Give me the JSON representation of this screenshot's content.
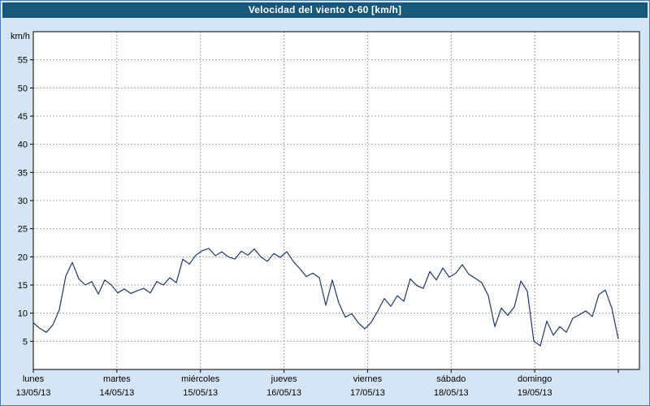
{
  "window": {
    "title": "Velocidad del viento 0-60 [km/h]"
  },
  "colors": {
    "titlebar_bg": "#175779",
    "titlebar_text": "#ffffff",
    "page_bg": "#d4e6f6",
    "page_border": "#4a7ebb",
    "plot_bg": "#ffffff",
    "plot_frame": "#000000",
    "grid": "#8c8c8c",
    "line": "#1f3864"
  },
  "chart_data": {
    "type": "line",
    "title": "Velocidad del viento 0-60 [km/h]",
    "xlabel": "",
    "ylabel": "km/h",
    "ylim": [
      0,
      60
    ],
    "yticks": [
      5,
      10,
      15,
      20,
      25,
      30,
      35,
      40,
      45,
      50,
      55
    ],
    "grid": "dashed",
    "legend": "none",
    "days": [
      {
        "name": "lunes",
        "date": "13/05/13"
      },
      {
        "name": "martes",
        "date": "14/05/13"
      },
      {
        "name": "miércoles",
        "date": "15/05/13"
      },
      {
        "name": "jueves",
        "date": "16/05/13"
      },
      {
        "name": "viernes",
        "date": "17/05/13"
      },
      {
        "name": "sábado",
        "date": "18/05/13"
      },
      {
        "name": "domingo",
        "date": "19/05/13"
      }
    ],
    "series": [
      {
        "name": "Velocidad del viento",
        "color": "#1f3864",
        "points_per_day": 13,
        "values": [
          8.3,
          7.3,
          6.6,
          7.9,
          10.6,
          16.6,
          19.0,
          16.1,
          15.0,
          15.6,
          13.4,
          15.9,
          15.0,
          13.6,
          14.3,
          13.5,
          14.0,
          14.4,
          13.6,
          15.6,
          15.0,
          16.3,
          15.4,
          19.6,
          18.7,
          20.3,
          21.1,
          21.5,
          20.2,
          20.9,
          20.0,
          19.6,
          21.0,
          20.3,
          21.4,
          20.0,
          19.2,
          20.6,
          19.9,
          20.9,
          19.2,
          17.9,
          16.5,
          17.1,
          16.3,
          11.4,
          15.9,
          11.8,
          9.3,
          9.9,
          8.3,
          7.2,
          8.4,
          10.4,
          12.6,
          11.2,
          13.1,
          12.1,
          16.1,
          14.9,
          14.4,
          17.4,
          15.9,
          18.0,
          16.4,
          17.1,
          18.6,
          16.9,
          16.2,
          15.4,
          13.1,
          7.6,
          10.9,
          9.6,
          11.1,
          15.7,
          13.9,
          5.0,
          4.2,
          8.6,
          6.1,
          7.6,
          6.6,
          9.1,
          9.7,
          10.4,
          9.4,
          13.3,
          14.1,
          10.9,
          5.4
        ]
      }
    ]
  }
}
